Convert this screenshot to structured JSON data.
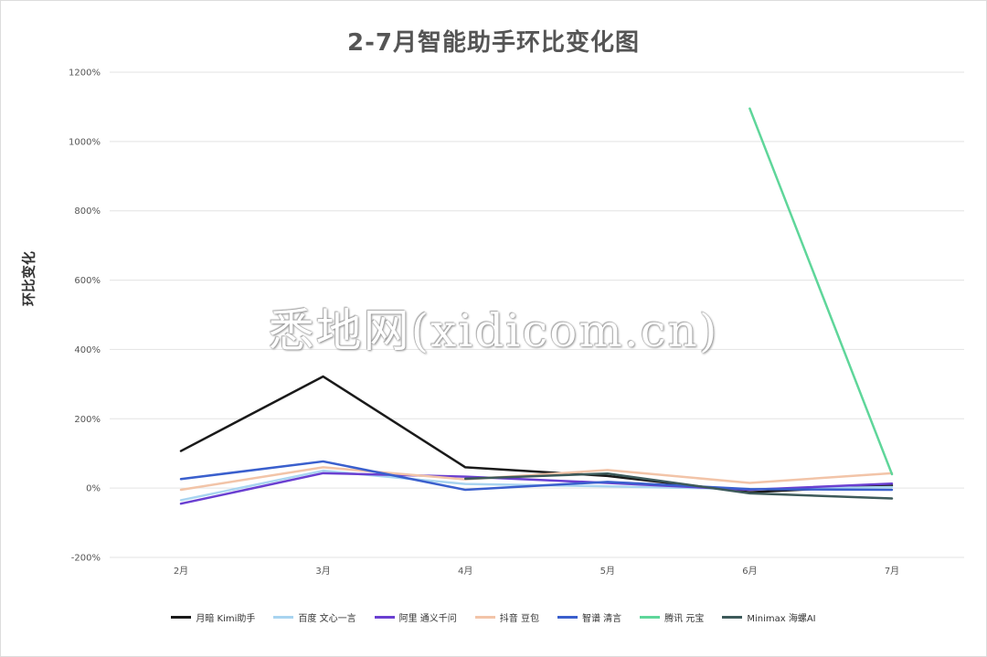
{
  "chart_data": {
    "type": "line",
    "title": "2-7月智能助手环比变化图",
    "ylabel": "环比变化",
    "xlabel": "",
    "categories": [
      "2月",
      "3月",
      "4月",
      "5月",
      "6月",
      "7月"
    ],
    "ylim": [
      -200,
      1200
    ],
    "yticks": [
      -200,
      0,
      200,
      400,
      600,
      800,
      1000,
      1200
    ],
    "ytick_labels": [
      "-200%",
      "0%",
      "200%",
      "400%",
      "600%",
      "800%",
      "1000%",
      "1200%"
    ],
    "grid": true,
    "legend_position": "bottom",
    "series": [
      {
        "name": "月暗 Kimi助手",
        "color": "#1a1a1a",
        "values": [
          107,
          322,
          60,
          35,
          -12,
          8
        ]
      },
      {
        "name": "百度 文心一言",
        "color": "#a8d4f0",
        "values": [
          -35,
          50,
          12,
          5,
          -3,
          3
        ]
      },
      {
        "name": "阿里 通义千问",
        "color": "#6a3fd1",
        "values": [
          -45,
          43,
          33,
          15,
          -5,
          13
        ]
      },
      {
        "name": "抖音 豆包",
        "color": "#f2c4a8",
        "values": [
          -5,
          60,
          25,
          52,
          15,
          43
        ]
      },
      {
        "name": "智谱 清言",
        "color": "#3a5fcd",
        "values": [
          26,
          77,
          -5,
          18,
          -3,
          -5
        ]
      },
      {
        "name": "腾讯 元宝",
        "color": "#5fd69a",
        "values": [
          null,
          null,
          null,
          null,
          1095,
          40
        ]
      },
      {
        "name": "Minimax 海螺AI",
        "color": "#3d5a5a",
        "values": [
          null,
          null,
          27,
          42,
          -15,
          -30
        ]
      }
    ]
  },
  "watermark": "悉地网(xidicom.cn)"
}
